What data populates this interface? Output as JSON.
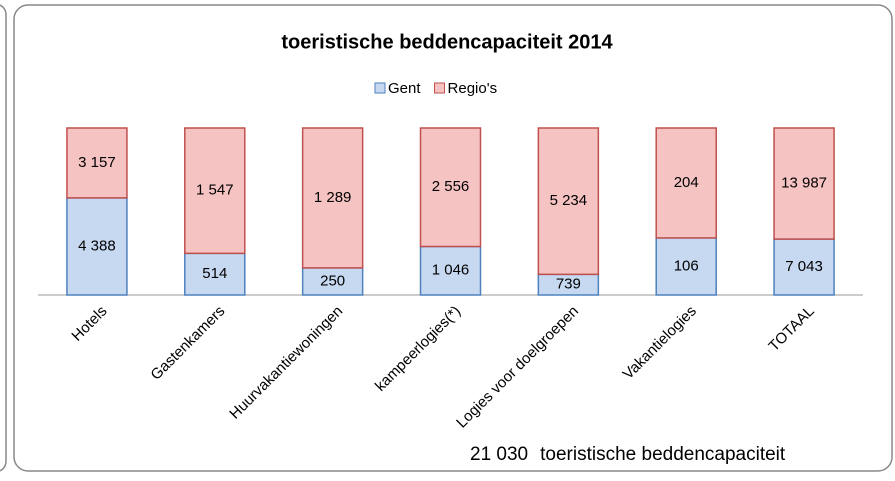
{
  "chart_data": {
    "type": "bar",
    "stacking": "percent",
    "title": "toeristische beddencapaciteit 2014",
    "categories": [
      "Hotels",
      "Gastenkamers",
      "Huurvakantiewoningen",
      "kampeerlogies(*)",
      "Logies voor doelgroepen",
      "Vakantielogies",
      "TOTAAL"
    ],
    "series": [
      {
        "name": "Gent",
        "color": "#c6d9f1",
        "edge": "#4f81bd",
        "values": [
          4388,
          514,
          250,
          1046,
          739,
          106,
          7043
        ],
        "value_labels": [
          "4 388",
          "514",
          "250",
          "1 046",
          "739",
          "106",
          "7 043"
        ]
      },
      {
        "name": "Regio's",
        "color": "#f6c3c3",
        "edge": "#c0504d",
        "values": [
          3157,
          1547,
          1289,
          2556,
          5234,
          204,
          13987
        ],
        "value_labels": [
          "3 157",
          "1 547",
          "1 289",
          "2 556",
          "5 234",
          "204",
          "13 987"
        ]
      }
    ],
    "legend": "top",
    "annotation": {
      "value": 21030,
      "value_label": "21 030",
      "text": "toeristische beddencapaciteit"
    }
  }
}
